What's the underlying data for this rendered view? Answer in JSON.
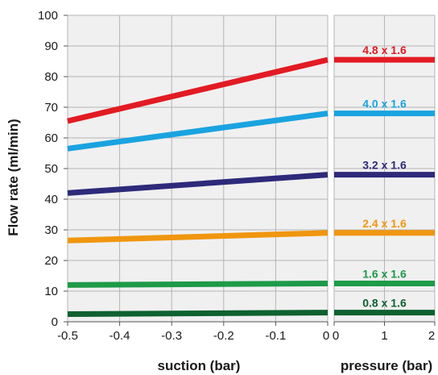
{
  "chart_data": [
    {
      "type": "line",
      "panel": "suction",
      "title": "",
      "xlabel": "suction (bar)",
      "ylabel": "Flow rate (ml/min)",
      "xlim": [
        -0.5,
        0
      ],
      "ylim": [
        0,
        100
      ],
      "x_ticks": [
        "-0.5",
        "-0.4",
        "-0.3",
        "-0.2",
        "-0.1",
        "0"
      ],
      "y_ticks": [
        "0",
        "10",
        "20",
        "30",
        "40",
        "50",
        "60",
        "70",
        "80",
        "90",
        "100"
      ],
      "grid": true,
      "background": "#f0f0f0",
      "series": [
        {
          "name": "4.8 x 1.6",
          "color": "#e21b23",
          "x": [
            -0.5,
            0
          ],
          "y": [
            65.5,
            85.5
          ]
        },
        {
          "name": "4.0 x 1.6",
          "color": "#1aa3e0",
          "x": [
            -0.5,
            0
          ],
          "y": [
            56.5,
            68
          ]
        },
        {
          "name": "3.2 x 1.6",
          "color": "#2e2a7a",
          "x": [
            -0.5,
            0
          ],
          "y": [
            42,
            48
          ]
        },
        {
          "name": "2.4 x 1.6",
          "color": "#f0960f",
          "x": [
            -0.5,
            0
          ],
          "y": [
            26.5,
            29
          ]
        },
        {
          "name": "1.6 x 1.6",
          "color": "#1e9a48",
          "x": [
            -0.5,
            0
          ],
          "y": [
            12,
            12.5
          ]
        },
        {
          "name": "0.8 x 1.6",
          "color": "#0e6130",
          "x": [
            -0.5,
            0
          ],
          "y": [
            2.5,
            3
          ]
        }
      ]
    },
    {
      "type": "line",
      "panel": "pressure",
      "title": "",
      "xlabel": "pressure (bar)",
      "ylabel": "",
      "xlim": [
        0,
        2
      ],
      "ylim": [
        0,
        100
      ],
      "x_ticks": [
        "0",
        "1",
        "2"
      ],
      "grid": true,
      "background": "#f0f0f0",
      "series": [
        {
          "name": "4.8 x 1.6",
          "color": "#e21b23",
          "x": [
            0,
            2
          ],
          "y": [
            85.5,
            85.5
          ]
        },
        {
          "name": "4.0 x 1.6",
          "color": "#1aa3e0",
          "x": [
            0,
            2
          ],
          "y": [
            68,
            68
          ]
        },
        {
          "name": "3.2 x 1.6",
          "color": "#2e2a7a",
          "x": [
            0,
            2
          ],
          "y": [
            48,
            48
          ]
        },
        {
          "name": "2.4 x 1.6",
          "color": "#f0960f",
          "x": [
            0,
            2
          ],
          "y": [
            29,
            29
          ]
        },
        {
          "name": "1.6 x 1.6",
          "color": "#1e9a48",
          "x": [
            0,
            2
          ],
          "y": [
            12.5,
            12.5
          ]
        },
        {
          "name": "0.8 x 1.6",
          "color": "#0e6130",
          "x": [
            0,
            2
          ],
          "y": [
            3,
            3
          ]
        }
      ]
    }
  ]
}
